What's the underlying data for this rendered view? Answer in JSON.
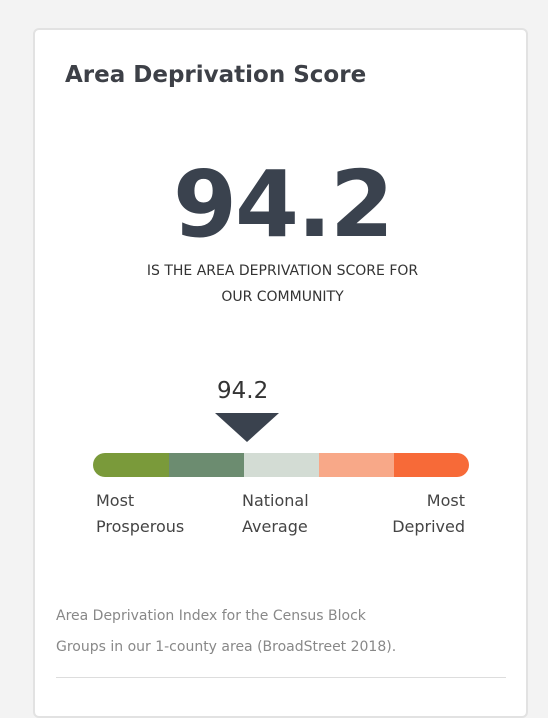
{
  "card": {
    "title": "Area Deprivation Score",
    "score": "94.2",
    "subtitle_lines": [
      "IS THE AREA DEPRIVATION SCORE FOR",
      "OUR COMMUNITY"
    ],
    "marker_label": "94.2",
    "scale_labels": [
      {
        "lines": [
          "Most",
          "Prosperous"
        ]
      },
      {
        "lines": [
          "National",
          "Average"
        ]
      },
      {
        "lines": [
          "Most",
          "Deprived"
        ]
      }
    ],
    "footnote_lines": [
      "Area Deprivation Index for the Census Block",
      "Groups in our 1-county area (BroadStreet 2018)."
    ]
  }
}
